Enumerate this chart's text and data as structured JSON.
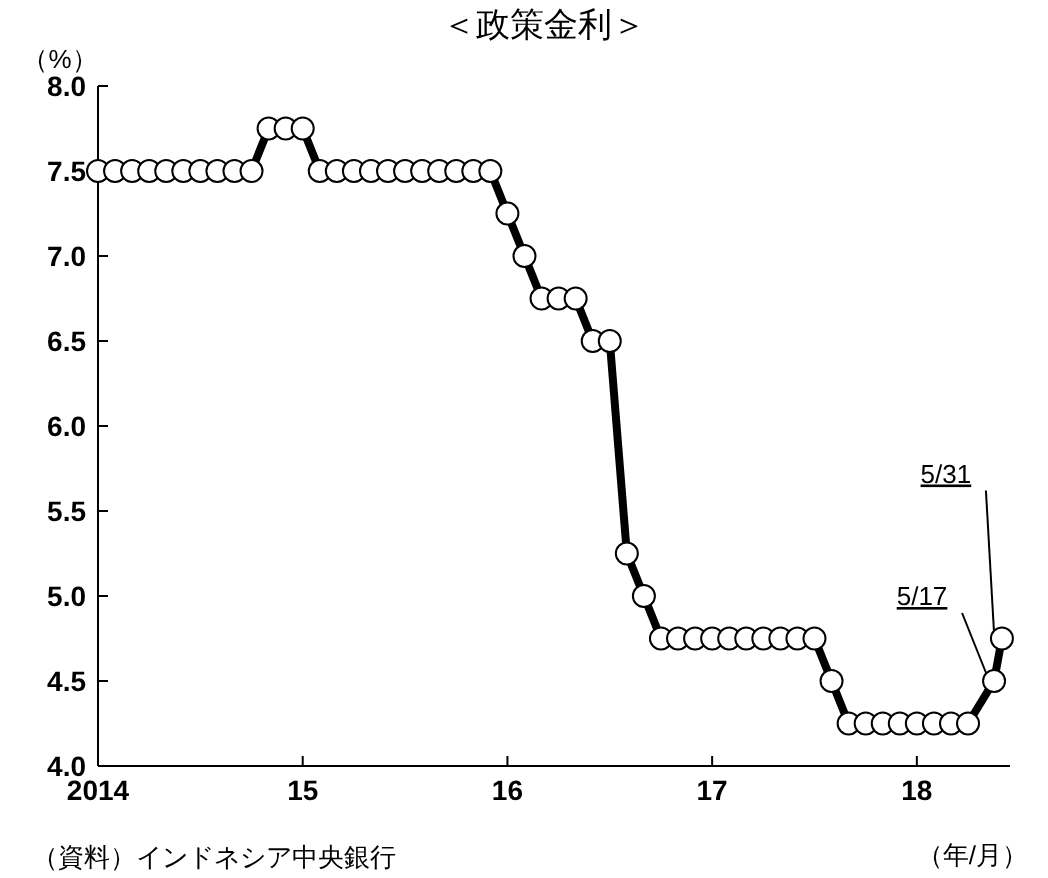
{
  "chart_data": {
    "type": "line",
    "title": "＜政策金利＞",
    "ylabel": "（%）",
    "xlabel": "（年/月）",
    "x": [
      "2014-01",
      "2014-02",
      "2014-03",
      "2014-04",
      "2014-05",
      "2014-06",
      "2014-07",
      "2014-08",
      "2014-09",
      "2014-10",
      "2014-11",
      "2014-12",
      "2015-01",
      "2015-02",
      "2015-03",
      "2015-04",
      "2015-05",
      "2015-06",
      "2015-07",
      "2015-08",
      "2015-09",
      "2015-10",
      "2015-11",
      "2015-12",
      "2016-01",
      "2016-02",
      "2016-03",
      "2016-04",
      "2016-05",
      "2016-06",
      "2016-07",
      "2016-08",
      "2016-09",
      "2016-10",
      "2016-11",
      "2016-12",
      "2017-01",
      "2017-02",
      "2017-03",
      "2017-04",
      "2017-05",
      "2017-06",
      "2017-07",
      "2017-08",
      "2017-09",
      "2017-10",
      "2017-11",
      "2017-12",
      "2018-01",
      "2018-02",
      "2018-03",
      "2018-04",
      "2018-05-17",
      "2018-05-31"
    ],
    "series": [
      {
        "color": "#000000",
        "values": [
          7.5,
          7.5,
          7.5,
          7.5,
          7.5,
          7.5,
          7.5,
          7.5,
          7.5,
          7.5,
          7.75,
          7.75,
          7.75,
          7.5,
          7.5,
          7.5,
          7.5,
          7.5,
          7.5,
          7.5,
          7.5,
          7.5,
          7.5,
          7.5,
          7.25,
          7.0,
          6.75,
          6.75,
          6.75,
          6.5,
          6.5,
          5.25,
          5.0,
          4.75,
          4.75,
          4.75,
          4.75,
          4.75,
          4.75,
          4.75,
          4.75,
          4.75,
          4.75,
          4.5,
          4.25,
          4.25,
          4.25,
          4.25,
          4.25,
          4.25,
          4.25,
          4.25,
          4.5,
          4.75
        ]
      }
    ],
    "xlim": [
      "2014-01",
      "2018-06-15"
    ],
    "xticks": [
      {
        "value": "2014-01",
        "label": "2014"
      },
      {
        "value": "2015-01",
        "label": "15"
      },
      {
        "value": "2016-01",
        "label": "16"
      },
      {
        "value": "2017-01",
        "label": "17"
      },
      {
        "value": "2018-01",
        "label": "18"
      }
    ],
    "ylim": [
      4.0,
      8.0
    ],
    "yticks": [
      {
        "value": 4.0,
        "label": "4.0"
      },
      {
        "value": 4.5,
        "label": "4.5"
      },
      {
        "value": 5.0,
        "label": "5.0"
      },
      {
        "value": 5.5,
        "label": "5.5"
      },
      {
        "value": 6.0,
        "label": "6.0"
      },
      {
        "value": 6.5,
        "label": "6.5"
      },
      {
        "value": 7.0,
        "label": "7.0"
      },
      {
        "value": 7.5,
        "label": "7.5"
      },
      {
        "value": 8.0,
        "label": "8.0"
      }
    ],
    "marker": "circle",
    "line_style": "solid",
    "grid": false,
    "annotations": [
      {
        "text": "5/17",
        "x": "2018-05-17",
        "y": 4.5
      },
      {
        "text": "5/31",
        "x": "2018-05-31",
        "y": 4.75
      },
      "（資料）インドネシア中央銀行"
    ]
  }
}
